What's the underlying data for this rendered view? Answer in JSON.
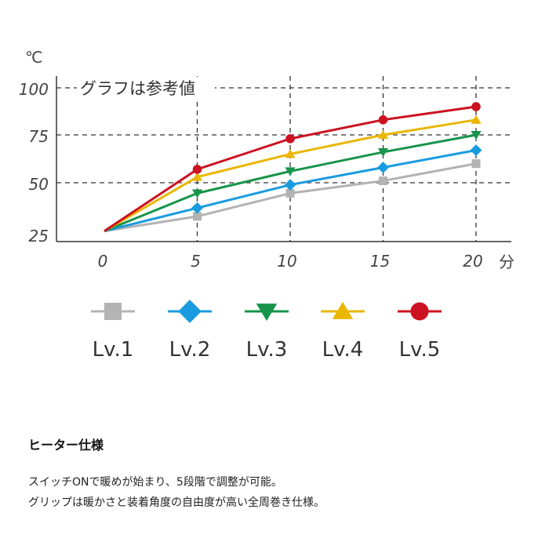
{
  "chart_data": {
    "type": "line",
    "x": [
      0,
      5,
      10,
      15,
      20
    ],
    "xlabel": "分",
    "ylabel": "℃",
    "xlim": [
      0,
      20
    ],
    "ylim": [
      25,
      100
    ],
    "x_ticks": [
      "0",
      "5",
      "10",
      "15",
      "20"
    ],
    "y_ticks": [
      "25",
      "50",
      "75",
      "100"
    ],
    "grid": true,
    "annotation": "グラフは参考値",
    "legend_position": "bottom",
    "series": [
      {
        "name": "Lv.1",
        "marker": "square",
        "color": "#b3b3b3",
        "values": [
          27,
          34,
          45,
          51,
          60
        ]
      },
      {
        "name": "Lv.2",
        "marker": "diamond",
        "color": "#1a9be0",
        "values": [
          27,
          38,
          49,
          58,
          67
        ]
      },
      {
        "name": "Lv.3",
        "marker": "triangle-down",
        "color": "#17944a",
        "values": [
          27,
          45,
          56,
          66,
          75
        ]
      },
      {
        "name": "Lv.4",
        "marker": "triangle-up",
        "color": "#eab600",
        "values": [
          27,
          53,
          65,
          75,
          83
        ]
      },
      {
        "name": "Lv.5",
        "marker": "circle",
        "color": "#cc1121",
        "values": [
          27,
          57,
          73,
          83,
          90
        ]
      }
    ]
  },
  "spec": {
    "title": "ヒーター仕様",
    "lines": [
      "スイッチONで暖めが始まり、5段階で調整が可能。",
      "グリップは暖かさと装着角度の自由度が高い全周巻き仕様。"
    ]
  }
}
